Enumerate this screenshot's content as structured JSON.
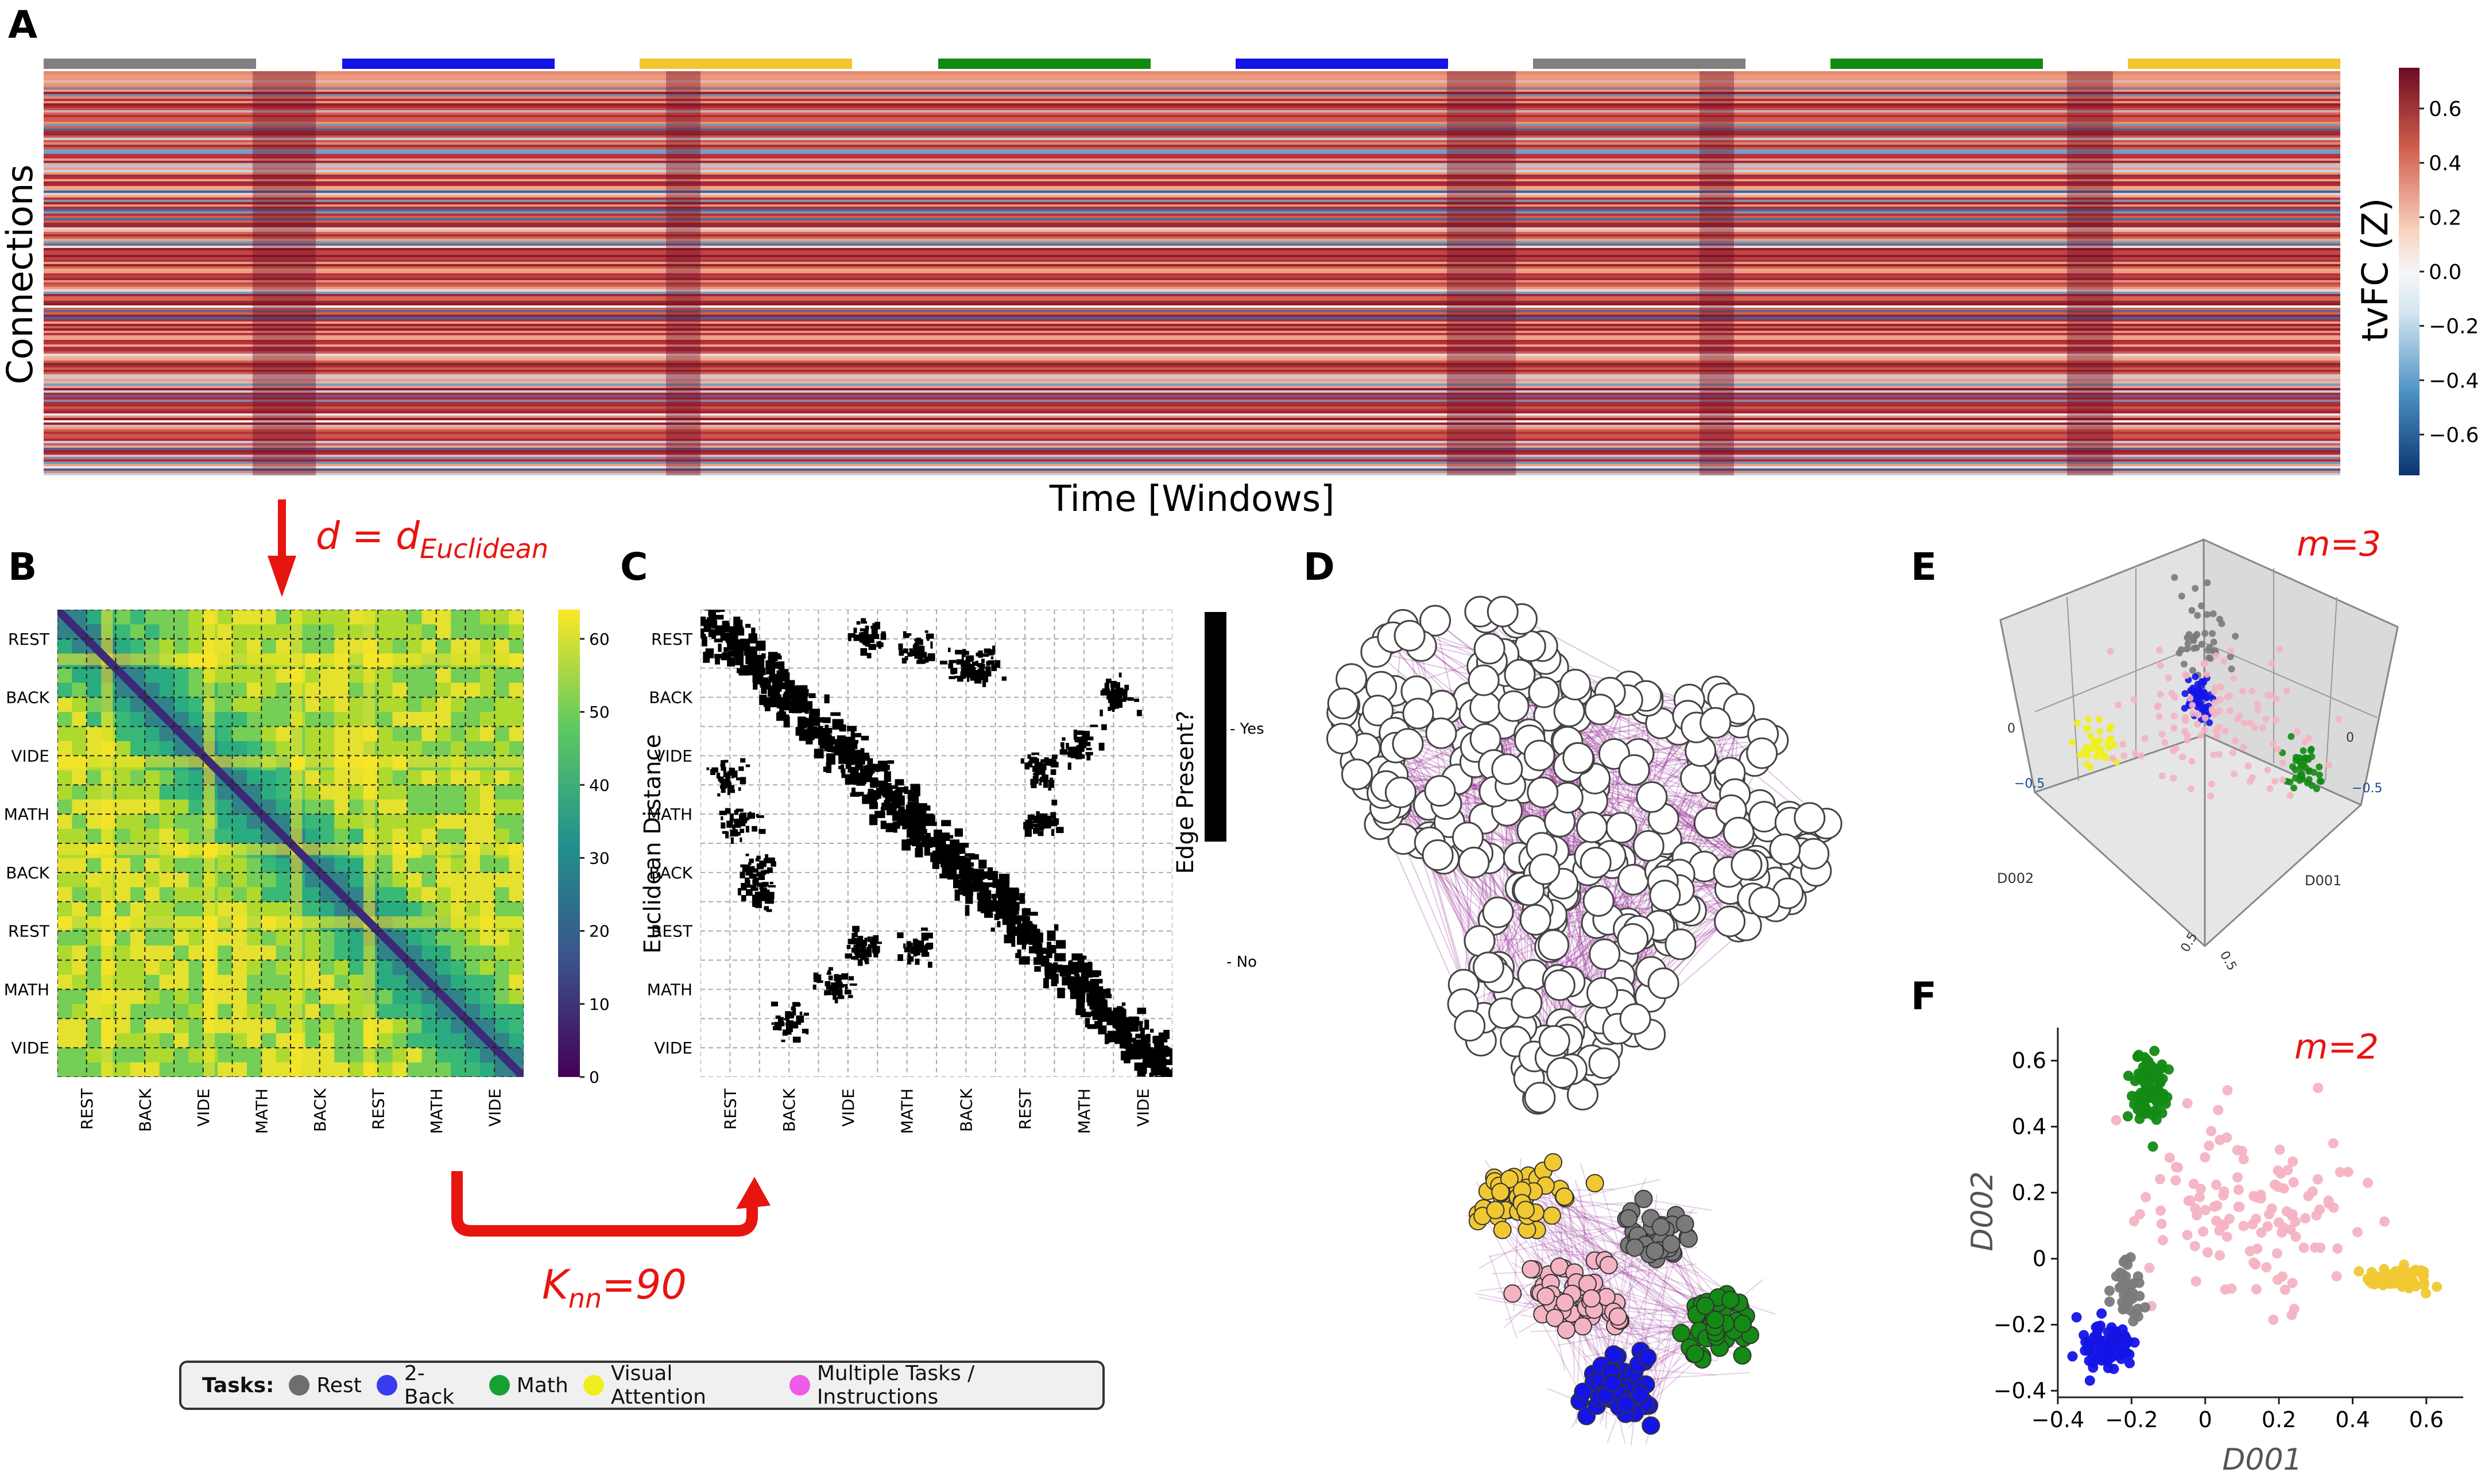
{
  "panels": {
    "A": {
      "letter": "A",
      "ylabel": "Connections",
      "xlabel": "Time [Windows]",
      "colorbar_label": "tvFC (Z)",
      "colorbar_ticks": [
        "0.6",
        "0.4",
        "0.2",
        "0.0",
        "−0.2",
        "−0.4",
        "−0.6"
      ],
      "colorbar_tick_values": [
        0.6,
        0.4,
        0.2,
        0.0,
        -0.2,
        -0.4,
        -0.6
      ],
      "colorbar_range": [
        -0.75,
        0.75
      ],
      "task_bar_colors": [
        "#808080",
        "#1414e6",
        "#f2c531",
        "#118a11",
        "#1414e6",
        "#808080",
        "#118a11",
        "#f2c531"
      ]
    },
    "arrow_down_label": "d = d",
    "arrow_down_subscript": "Euclidean",
    "B": {
      "letter": "B",
      "row_labels": [
        "REST",
        "BACK",
        "VIDE",
        "MATH",
        "BACK",
        "REST",
        "MATH",
        "VIDE"
      ],
      "col_labels": [
        "REST",
        "BACK",
        "VIDE",
        "MATH",
        "BACK",
        "REST",
        "MATH",
        "VIDE"
      ],
      "colorbar_label": "Euclidean Distance",
      "colorbar_ticks": [
        "60",
        "50",
        "40",
        "30",
        "20",
        "10",
        "0"
      ],
      "colorbar_tick_values": [
        60,
        50,
        40,
        30,
        20,
        10,
        0
      ],
      "colorbar_range": [
        0,
        64
      ]
    },
    "C": {
      "letter": "C",
      "row_labels": [
        "REST",
        "BACK",
        "VIDE",
        "MATH",
        "BACK",
        "REST",
        "MATH",
        "VIDE"
      ],
      "col_labels": [
        "REST",
        "BACK",
        "VIDE",
        "MATH",
        "BACK",
        "REST",
        "MATH",
        "VIDE"
      ],
      "colorbar_label": "Edge Present?",
      "yes_label": "Yes",
      "no_label": "No"
    },
    "knn_label": "K",
    "knn_subscript": "nn",
    "knn_value": "=90",
    "D": {
      "letter": "D"
    },
    "E": {
      "letter": "E",
      "annotation": "m=3",
      "axis_x_label": "D001",
      "axis_y_label": "D002",
      "tick_labels": [
        "0",
        "−0.5",
        "0",
        "−0.5",
        "0.5",
        "0.5"
      ]
    },
    "F": {
      "letter": "F",
      "annotation": "m=2",
      "xlabel": "D001",
      "ylabel": "D002",
      "x_ticks": [
        "−0.4",
        "−0.2",
        "0",
        "0.2",
        "0.4",
        "0.6"
      ],
      "y_ticks": [
        "0.6",
        "0.4",
        "0.2",
        "0",
        "−0.2",
        "−0.4"
      ]
    }
  },
  "legend": {
    "title": "Tasks:",
    "items": [
      {
        "label": "Rest",
        "color": "#6e6e6e"
      },
      {
        "label": "2-Back",
        "color": "#3a3af0"
      },
      {
        "label": "Math",
        "color": "#16a034"
      },
      {
        "label": "Visual Attention",
        "color": "#f0ef1e"
      },
      {
        "label": "Multiple Tasks / Instructions",
        "color": "#f05be8"
      }
    ]
  },
  "chart_data": [
    {
      "type": "scatter",
      "title": "",
      "xlabel": "D001",
      "ylabel": "D002",
      "xlim": [
        -0.4,
        0.7
      ],
      "ylim": [
        -0.42,
        0.7
      ],
      "annotation": "m=2",
      "series": [
        {
          "name": "Math",
          "color": "#138a13",
          "center": [
            -0.15,
            0.52
          ],
          "spread": [
            0.035,
            0.08
          ],
          "n": 90
        },
        {
          "name": "Visual Attention",
          "color": "#f0c832",
          "center": [
            0.52,
            -0.06
          ],
          "spread": [
            0.07,
            0.025
          ],
          "n": 70
        },
        {
          "name": "2-Back",
          "color": "#1414e6",
          "center": [
            -0.27,
            -0.26
          ],
          "spread": [
            0.05,
            0.05
          ],
          "n": 80
        },
        {
          "name": "Rest",
          "color": "#7a7a7a",
          "center": [
            -0.21,
            -0.1
          ],
          "spread": [
            0.03,
            0.06
          ],
          "n": 40
        },
        {
          "name": "Multiple Tasks / Instructions",
          "color": "#f4b3c2",
          "center": [
            0.1,
            0.15
          ],
          "spread": [
            0.22,
            0.2
          ],
          "n": 120
        }
      ]
    }
  ]
}
